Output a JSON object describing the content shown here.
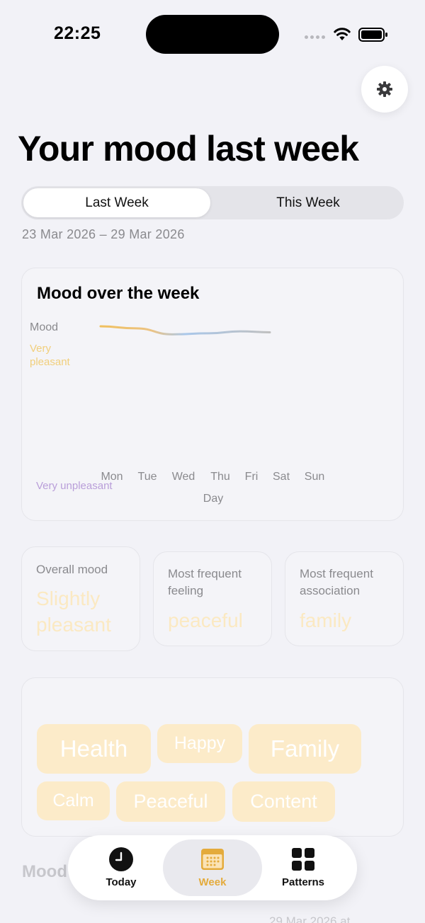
{
  "status_bar": {
    "time": "22:25"
  },
  "header": {
    "title": "Your mood last week"
  },
  "segmented": {
    "options": [
      "Last Week",
      "This Week"
    ],
    "selected": "Last Week"
  },
  "date_range": "23 Mar 2026 – 29 Mar 2026",
  "mood_chart": {
    "title": "Mood over the week",
    "y_axis_title": "Mood",
    "y_top_label": "Very pleasant",
    "y_bottom_label": "Very unpleasant",
    "x_axis_title": "Day"
  },
  "chart_data": {
    "type": "line",
    "title": "Mood over the week",
    "xlabel": "Day",
    "ylabel": "Mood",
    "categories": [
      "Mon",
      "Tue",
      "Wed",
      "Thu",
      "Fri",
      "Sat",
      "Sun"
    ],
    "values": [
      0.56,
      0.54,
      0.48,
      0.49,
      0.51,
      0.5,
      null
    ],
    "ylim": [
      -1,
      1
    ],
    "y_range_labels": [
      "Very unpleasant",
      "Very pleasant"
    ],
    "grid": false,
    "colors": {
      "pleasant": "#f0c05e",
      "neutral": "#a9c7ea",
      "unpleasant": "#b99ed9"
    }
  },
  "stats": [
    {
      "label": "Overall mood",
      "value": "Slightly pleasant"
    },
    {
      "label": "Most frequent feeling",
      "value": "peaceful"
    },
    {
      "label": "Most frequent association",
      "value": "family"
    }
  ],
  "tags": [
    "Health",
    "Happy",
    "Family",
    "Calm",
    "Peaceful",
    "Content"
  ],
  "section_under": {
    "title_fragment": "Mood",
    "date_fragment": "29 Mar 2026 at"
  },
  "tab_bar": {
    "tabs": [
      {
        "label": "Today",
        "icon": "clock-icon"
      },
      {
        "label": "Week",
        "icon": "calendar-icon"
      },
      {
        "label": "Patterns",
        "icon": "grid-icon"
      }
    ],
    "active": "Week"
  },
  "colors": {
    "accent": "#e4ab3c",
    "background": "#f2f2f7",
    "tag_fill": "#fcebc9"
  }
}
